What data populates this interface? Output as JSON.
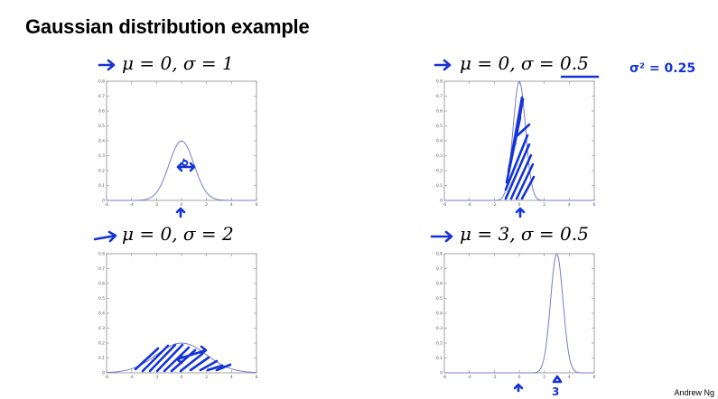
{
  "page": {
    "title": "Gaussian distribution example",
    "footer": "Andrew Ng"
  },
  "colors": {
    "curve": "#7a7acb",
    "ink": "#1533d6",
    "axes": "#8a8a8a"
  },
  "chart_data": [
    {
      "type": "line",
      "caption": "μ = 0, σ = 1",
      "mu": 0,
      "sigma": 1,
      "xlim": [
        -6,
        6
      ],
      "ylim": [
        0,
        0.8
      ],
      "xticks": [
        "-6",
        "-4",
        "-2",
        "0",
        "2",
        "4",
        "6"
      ],
      "yticks": [
        "0",
        "0.1",
        "0.2",
        "0.3",
        "0.4",
        "0.5",
        "0.6",
        "0.7",
        "0.8"
      ],
      "peak": 0.399
    },
    {
      "type": "line",
      "caption": "μ = 0, σ = 0.5",
      "mu": 0,
      "sigma": 0.5,
      "xlim": [
        -6,
        6
      ],
      "ylim": [
        0,
        0.8
      ],
      "xticks": [
        "-6",
        "-4",
        "-2",
        "0",
        "2",
        "4",
        "6"
      ],
      "yticks": [
        "0",
        "0.1",
        "0.2",
        "0.3",
        "0.4",
        "0.5",
        "0.6",
        "0.7",
        "0.8"
      ],
      "peak": 0.798
    },
    {
      "type": "line",
      "caption": "μ = 0, σ = 2",
      "mu": 0,
      "sigma": 2,
      "xlim": [
        -6,
        6
      ],
      "ylim": [
        0,
        0.8
      ],
      "xticks": [
        "-6",
        "-4",
        "-2",
        "0",
        "2",
        "4",
        "6"
      ],
      "yticks": [
        "0",
        "0.1",
        "0.2",
        "0.3",
        "0.4",
        "0.5",
        "0.6",
        "0.7",
        "0.8"
      ],
      "peak": 0.199
    },
    {
      "type": "line",
      "caption": "μ = 3, σ = 0.5",
      "mu": 3,
      "sigma": 0.5,
      "xlim": [
        -6,
        6
      ],
      "ylim": [
        0,
        0.8
      ],
      "xticks": [
        "-6",
        "-4",
        "-2",
        "0",
        "2",
        "4",
        "6"
      ],
      "yticks": [
        "0",
        "0.1",
        "0.2",
        "0.3",
        "0.4",
        "0.5",
        "0.6",
        "0.7",
        "0.8"
      ],
      "peak": 0.798
    }
  ],
  "annotations": {
    "variance_note": "σ² = 0.25",
    "sigma_mark": "σ",
    "three_mark": "3"
  }
}
